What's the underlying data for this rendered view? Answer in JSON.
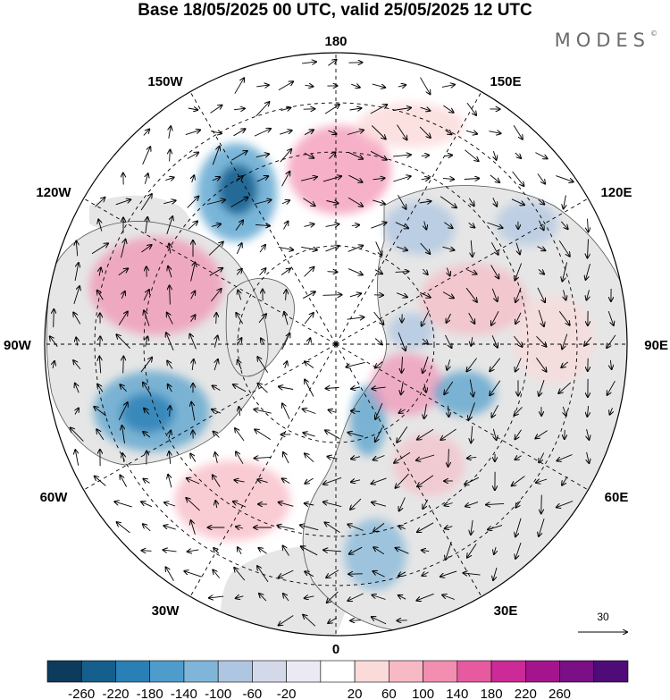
{
  "title": "Base 18/05/2025 00 UTC, valid 25/05/2025 12 UTC",
  "brand": "MODES",
  "brand_mark": "©",
  "longitude_labels": {
    "top": "180",
    "bottom": "0",
    "left": "90W",
    "right": "90E",
    "upper_left_outer": "150W",
    "upper_left_inner": "120W",
    "upper_right_outer": "150E",
    "upper_right_inner": "120E",
    "lower_left_inner": "60W",
    "lower_left_outer": "30W",
    "lower_right_inner": "60E",
    "lower_right_outer": "30E"
  },
  "reference_vector": {
    "value": "30",
    "icon": "arrow-right-icon"
  },
  "colorbar": {
    "ticks": [
      "-260",
      "-220",
      "-180",
      "-140",
      "-100",
      "-60",
      "-20",
      "20",
      "60",
      "100",
      "140",
      "180",
      "220",
      "260"
    ],
    "colors": [
      "#0d3b5c",
      "#155f8c",
      "#2a80b6",
      "#4d9ccb",
      "#7fb5d9",
      "#aec6e1",
      "#d4d9ea",
      "#ebe9f3",
      "#ffffff",
      "#fbdada",
      "#f7b9c4",
      "#f28eb0",
      "#e65aa0",
      "#cc2a96",
      "#a4158d",
      "#7a0f86",
      "#4f0c79"
    ]
  },
  "map_colors": {
    "land": "#e6e6e6",
    "ocean": "#ffffff",
    "coast": "#555555",
    "grid": "#000000"
  }
}
